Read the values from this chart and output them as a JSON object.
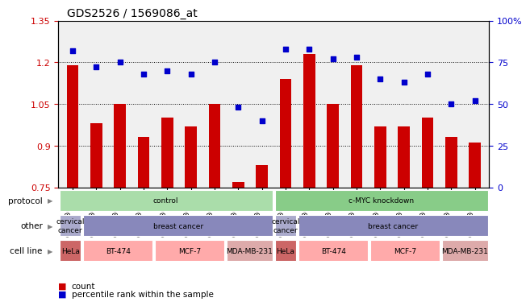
{
  "title": "GDS2526 / 1569086_at",
  "samples": [
    "GSM136095",
    "GSM136097",
    "GSM136079",
    "GSM136081",
    "GSM136083",
    "GSM136085",
    "GSM136087",
    "GSM136089",
    "GSM136091",
    "GSM136096",
    "GSM136098",
    "GSM136080",
    "GSM136082",
    "GSM136084",
    "GSM136086",
    "GSM136088",
    "GSM136090",
    "GSM136092"
  ],
  "bar_values": [
    1.19,
    0.98,
    1.05,
    0.93,
    1.0,
    0.97,
    1.05,
    0.77,
    0.83,
    1.14,
    1.23,
    1.05,
    1.19,
    0.97,
    0.97,
    1.0,
    0.93,
    0.91
  ],
  "dot_values": [
    82,
    72,
    75,
    68,
    70,
    68,
    75,
    48,
    40,
    83,
    83,
    77,
    78,
    65,
    63,
    68,
    50,
    52
  ],
  "ylim": [
    0.75,
    1.35
  ],
  "y2lim": [
    0,
    100
  ],
  "yticks": [
    0.75,
    0.9,
    1.05,
    1.2,
    1.35
  ],
  "ytick_labels": [
    "0.75",
    "0.9",
    "1.05",
    "1.2",
    "1.35"
  ],
  "y2ticks": [
    0,
    25,
    50,
    75,
    100
  ],
  "y2tick_labels": [
    "0",
    "25",
    "50",
    "75",
    "100%"
  ],
  "hlines": [
    0.9,
    1.05,
    1.2
  ],
  "bar_color": "#cc0000",
  "dot_color": "#0000cc",
  "protocol_row": {
    "label": "protocol",
    "groups": [
      {
        "text": "control",
        "start": 0,
        "end": 9,
        "color": "#aaddaa"
      },
      {
        "text": "c-MYC knockdown",
        "start": 9,
        "end": 18,
        "color": "#88cc88"
      }
    ]
  },
  "other_row": {
    "label": "other",
    "groups": [
      {
        "text": "cervical\ncancer",
        "start": 0,
        "end": 1,
        "color": "#aaaacc"
      },
      {
        "text": "breast cancer",
        "start": 1,
        "end": 9,
        "color": "#8888bb"
      },
      {
        "text": "cervical\ncancer",
        "start": 9,
        "end": 10,
        "color": "#aaaacc"
      },
      {
        "text": "breast cancer",
        "start": 10,
        "end": 18,
        "color": "#8888bb"
      }
    ]
  },
  "cellline_row": {
    "label": "cell line",
    "groups": [
      {
        "text": "HeLa",
        "start": 0,
        "end": 1,
        "color": "#cc6666"
      },
      {
        "text": "BT-474",
        "start": 1,
        "end": 4,
        "color": "#ffaaaa"
      },
      {
        "text": "MCF-7",
        "start": 4,
        "end": 7,
        "color": "#ffaaaa"
      },
      {
        "text": "MDA-MB-231",
        "start": 7,
        "end": 9,
        "color": "#ddaaaa"
      },
      {
        "text": "HeLa",
        "start": 9,
        "end": 10,
        "color": "#cc6666"
      },
      {
        "text": "BT-474",
        "start": 10,
        "end": 13,
        "color": "#ffaaaa"
      },
      {
        "text": "MCF-7",
        "start": 13,
        "end": 16,
        "color": "#ffaaaa"
      },
      {
        "text": "MDA-MB-231",
        "start": 16,
        "end": 18,
        "color": "#ddaaaa"
      }
    ]
  },
  "legend_count_color": "#cc0000",
  "legend_dot_color": "#0000cc",
  "background_color": "#ffffff",
  "grid_color": "#cccccc"
}
